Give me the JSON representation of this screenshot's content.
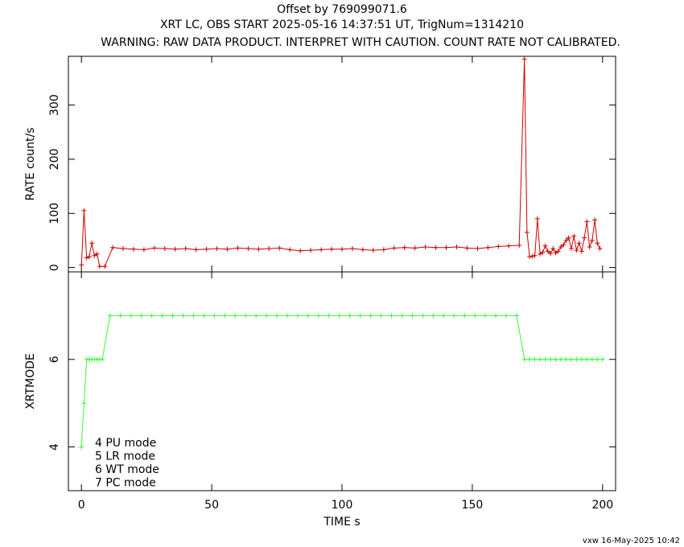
{
  "chart_data": [
    {
      "type": "line",
      "title": "Offset by 769099071.6",
      "subtitle": "XRT LC, OBS START 2025-05-16 14:37:51 UT, TrigNum=1314210",
      "warning": "WARNING: RAW DATA PRODUCT. INTERPRET WITH CAUTION. COUNT RATE NOT CALIBRATED.",
      "ylabel": "RATE  count/s",
      "xlim": [
        -5,
        205
      ],
      "xticks": [
        0,
        50,
        100,
        150,
        200
      ],
      "ylim": [
        -8,
        390
      ],
      "yticks": [
        0,
        100,
        200,
        300
      ],
      "series": [
        {
          "color": "#cc0000",
          "x": [
            0,
            1,
            2,
            3,
            4,
            5,
            6,
            7,
            9,
            12,
            16,
            20,
            24,
            28,
            32,
            36,
            40,
            44,
            48,
            52,
            56,
            60,
            64,
            68,
            72,
            76,
            80,
            84,
            88,
            92,
            96,
            100,
            104,
            108,
            112,
            116,
            120,
            124,
            128,
            132,
            136,
            140,
            144,
            148,
            152,
            156,
            160,
            164,
            168,
            170,
            171,
            172,
            173,
            174,
            175,
            176,
            177,
            178,
            179,
            180,
            181,
            182,
            183,
            184,
            185,
            186,
            187,
            188,
            189,
            190,
            191,
            192,
            193,
            194,
            195,
            196,
            197,
            198,
            199
          ],
          "values": [
            5,
            105,
            18,
            20,
            45,
            22,
            25,
            2,
            2,
            37,
            35,
            34,
            33,
            36,
            35,
            34,
            35,
            33,
            34,
            35,
            34,
            36,
            35,
            34,
            35,
            36,
            33,
            31,
            32,
            33,
            34,
            34,
            35,
            33,
            32,
            33,
            36,
            37,
            36,
            38,
            37,
            37,
            38,
            36,
            35,
            37,
            39,
            40,
            41,
            385,
            65,
            20,
            21,
            22,
            90,
            25,
            28,
            40,
            30,
            26,
            35,
            27,
            30,
            38,
            42,
            50,
            55,
            35,
            58,
            32,
            45,
            30,
            55,
            85,
            38,
            50,
            88,
            45,
            35
          ]
        }
      ]
    },
    {
      "type": "line",
      "ylabel": "XRTMODE",
      "xlabel": "TIME  s",
      "xlim": [
        -5,
        205
      ],
      "xticks": [
        0,
        50,
        100,
        150,
        200
      ],
      "ylim": [
        3,
        8
      ],
      "yticks": [
        4,
        6
      ],
      "annotations": [
        "4 PU mode",
        "5 LR mode",
        "6 WT mode",
        "7 PC mode"
      ],
      "series": [
        {
          "color": "#33ff33",
          "x": [
            0,
            1,
            2,
            3,
            4,
            5,
            6,
            7,
            8,
            11,
            15,
            19,
            23,
            27,
            31,
            35,
            39,
            43,
            47,
            51,
            55,
            59,
            63,
            67,
            71,
            75,
            79,
            83,
            87,
            91,
            95,
            99,
            103,
            107,
            111,
            115,
            119,
            123,
            127,
            131,
            135,
            139,
            143,
            147,
            151,
            155,
            159,
            163,
            167,
            170,
            172,
            174,
            176,
            178,
            180,
            182,
            184,
            186,
            188,
            190,
            192,
            194,
            196,
            198,
            200
          ],
          "values": [
            4,
            5,
            6,
            6,
            6,
            6,
            6,
            6,
            6,
            7,
            7,
            7,
            7,
            7,
            7,
            7,
            7,
            7,
            7,
            7,
            7,
            7,
            7,
            7,
            7,
            7,
            7,
            7,
            7,
            7,
            7,
            7,
            7,
            7,
            7,
            7,
            7,
            7,
            7,
            7,
            7,
            7,
            7,
            7,
            7,
            7,
            7,
            7,
            7,
            6,
            6,
            6,
            6,
            6,
            6,
            6,
            6,
            6,
            6,
            6,
            6,
            6,
            6,
            6,
            6
          ]
        }
      ]
    }
  ],
  "footer": "vxw 16-May-2025 10:42"
}
